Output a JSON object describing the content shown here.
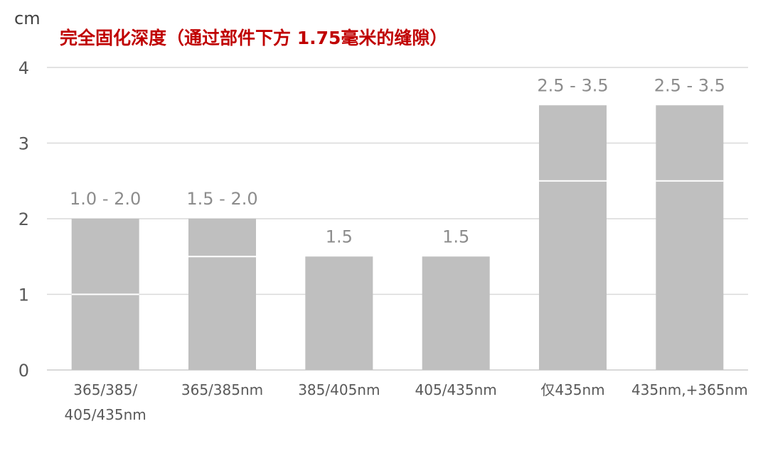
{
  "chart_data": {
    "type": "bar",
    "title": "完全固化深度（通过部件下方 1.75毫米的缝隙）",
    "ylabel": "cm",
    "ylim": [
      0,
      4
    ],
    "yticks": [
      "0",
      "1",
      "2",
      "3",
      "4"
    ],
    "grid": true,
    "categories": [
      [
        "365/385/",
        "405/435nm"
      ],
      [
        "365/385nm"
      ],
      [
        "385/405nm"
      ],
      [
        "405/435nm"
      ],
      [
        "仅435nm"
      ],
      [
        "435nm,+365nm"
      ]
    ],
    "ranges": [
      [
        1.0,
        2.0
      ],
      [
        1.5,
        2.0
      ],
      [
        1.5,
        1.5
      ],
      [
        1.5,
        1.5
      ],
      [
        2.5,
        3.5
      ],
      [
        2.5,
        3.5
      ]
    ],
    "data_labels": [
      "1.0 - 2.0",
      "1.5 - 2.0",
      "1.5",
      "1.5",
      "2.5 - 3.5",
      "2.5 - 3.5"
    ]
  },
  "colors": {
    "bar": "#bfbfbf",
    "divider": "#ffffff",
    "grid": "#d9d9d9",
    "tick_text": "#595959",
    "label_text": "#8c8c8c",
    "title": "#c00000"
  }
}
